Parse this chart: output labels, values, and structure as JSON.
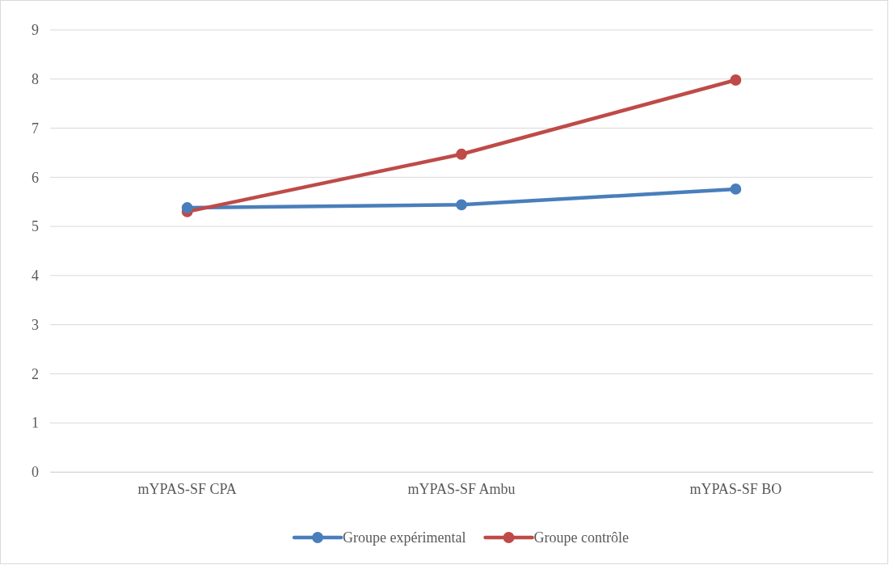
{
  "chart_data": {
    "type": "line",
    "categories": [
      "mYPAS-SF CPA",
      "mYPAS-SF Ambu",
      "mYPAS-SF BO"
    ],
    "series": [
      {
        "name": "Groupe expérimental",
        "color": "#4a7ebb",
        "values": [
          5.38,
          5.44,
          5.76
        ]
      },
      {
        "name": "Groupe contrôle",
        "color": "#be4b48",
        "values": [
          5.3,
          6.47,
          7.98
        ]
      }
    ],
    "ylim": [
      0,
      9
    ],
    "yticks": [
      0,
      1,
      2,
      3,
      4,
      5,
      6,
      7,
      8,
      9
    ],
    "grid": "y",
    "legend": "bottom",
    "marker": "circle",
    "line_style": "solid"
  }
}
